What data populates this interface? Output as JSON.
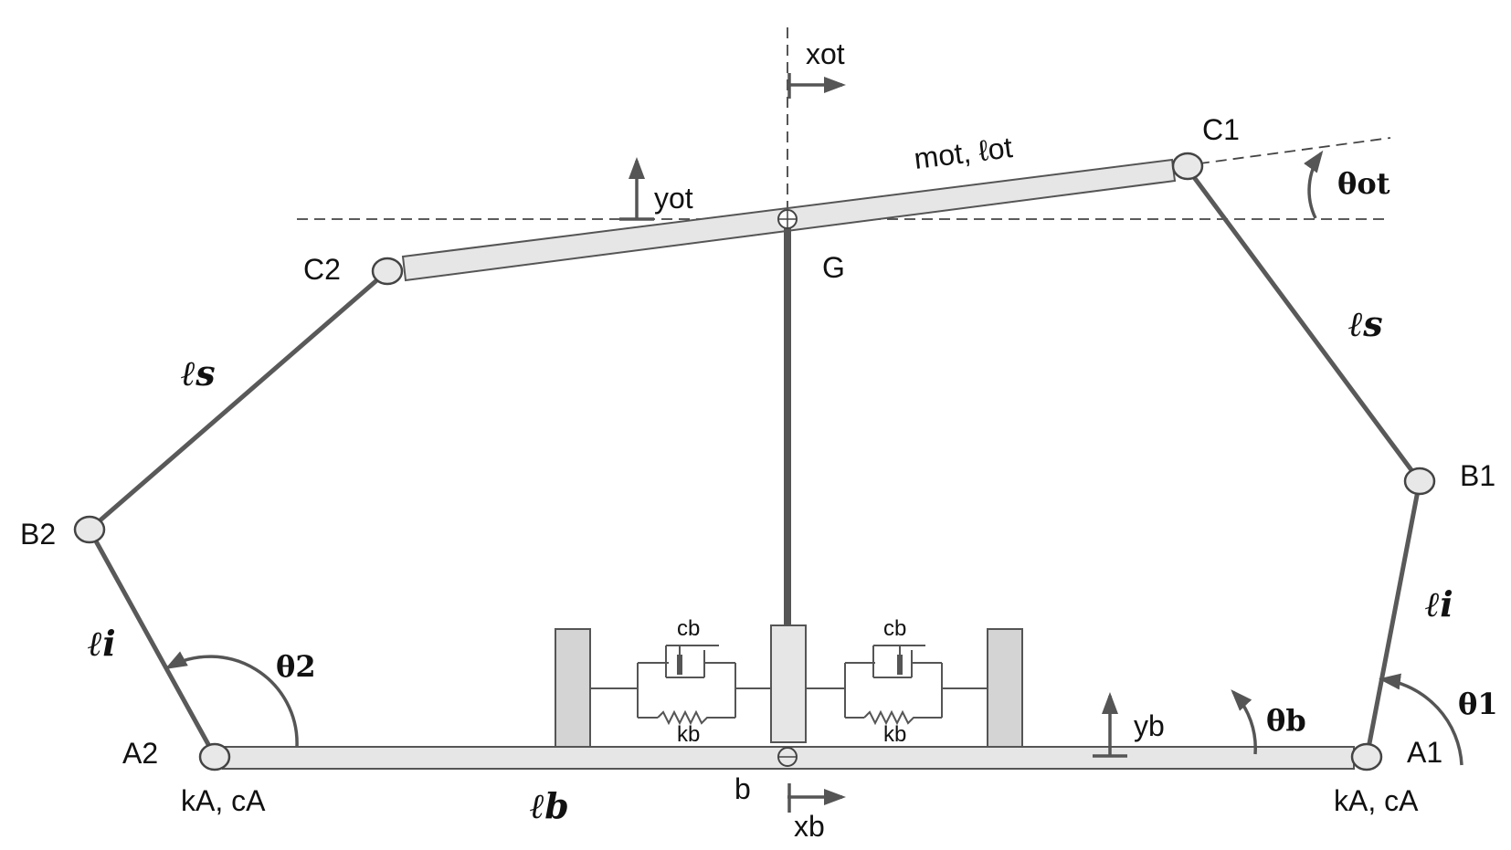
{
  "labels": {
    "xot": "xot",
    "yot": "yot",
    "top_bar": "mot, ℓot",
    "theta_ot": "θot",
    "C1": "C1",
    "C2": "C2",
    "G": "G",
    "ls_left": "ℓs",
    "ls_right": "ℓs",
    "B1": "B1",
    "B2": "B2",
    "li_left": "ℓi",
    "li_right": "ℓi",
    "theta2": "θ2",
    "theta1": "θ1",
    "theta_b": "θb",
    "A1": "A1",
    "A2": "A2",
    "kAcA_left": "kA, cA",
    "kAcA_right": "kA, cA",
    "lb": "ℓb",
    "b": "b",
    "xb": "xb",
    "yb": "yb",
    "cb_left": "cb",
    "cb_right": "cb",
    "kb_left": "kb",
    "kb_right": "kb"
  }
}
